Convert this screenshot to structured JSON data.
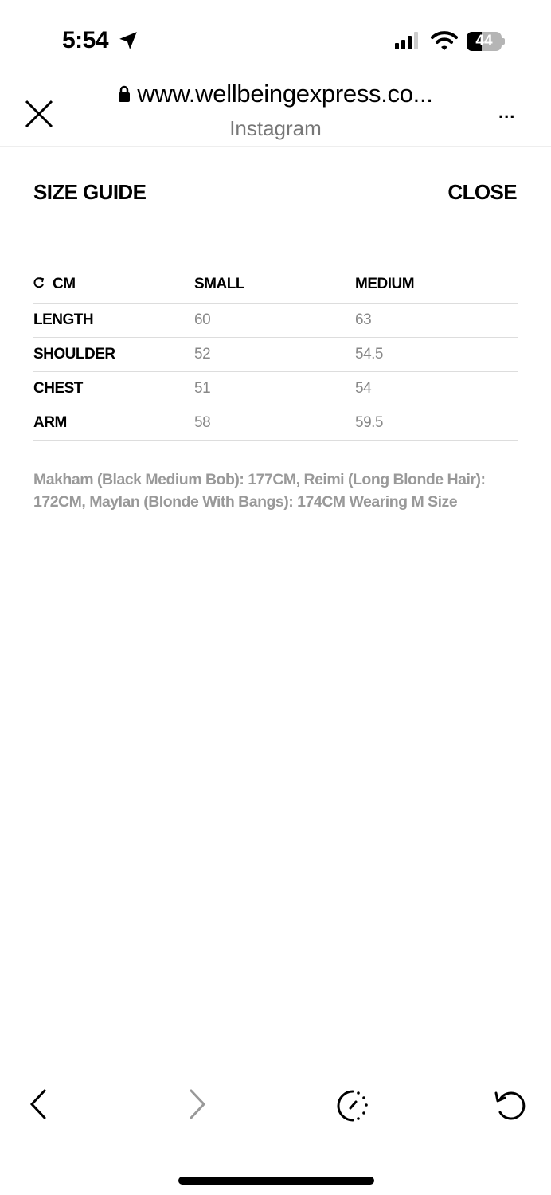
{
  "status_bar": {
    "time": "5:54",
    "battery": "44",
    "battery_percent": 44,
    "icons": [
      "location-arrow-icon",
      "signal-icon",
      "wifi-icon",
      "battery-icon"
    ]
  },
  "browser": {
    "url": "www.wellbeingexpress.co...",
    "source": "Instagram",
    "more": "..."
  },
  "size_guide": {
    "title": "SIZE GUIDE",
    "close": "CLOSE",
    "headers": [
      "CM",
      "SMALL",
      "MEDIUM"
    ],
    "rows": [
      [
        "LENGTH",
        "60",
        "63"
      ],
      [
        "SHOULDER",
        "52",
        "54.5"
      ],
      [
        "CHEST",
        "51",
        "54"
      ],
      [
        "ARM",
        "58",
        "59.5"
      ]
    ],
    "note": "Makham (Black Medium Bob): 177CM, Reimi (Long Blonde Hair): 172CM, Maylan (Blonde With Bangs): 174CM Wearing M Size"
  },
  "toolbar": {
    "icons": [
      "back-icon",
      "forward-icon",
      "history-icon",
      "reload-icon"
    ]
  }
}
